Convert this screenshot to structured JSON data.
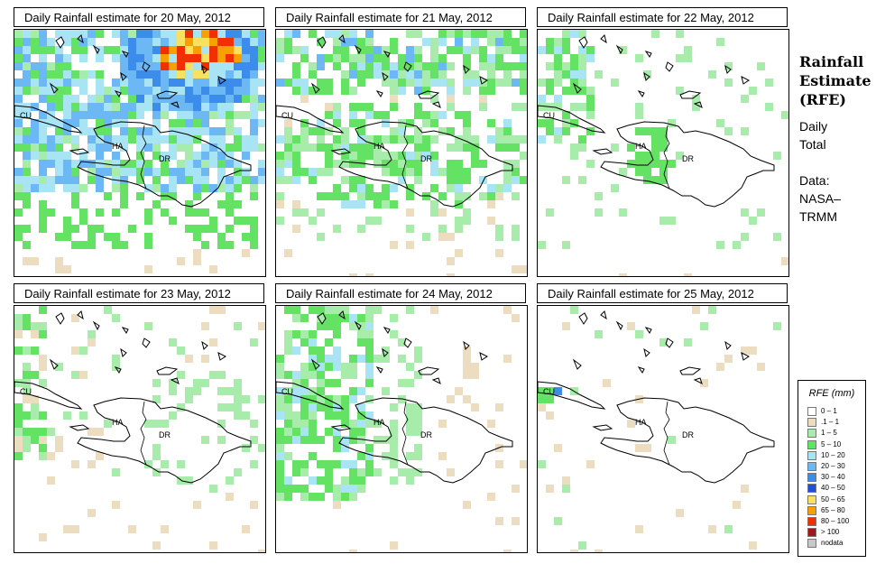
{
  "panels": [
    {
      "title": "Daily Rainfall estimate for  20 May, 2012"
    },
    {
      "title": "Daily Rainfall estimate for  21 May, 2012"
    },
    {
      "title": "Daily Rainfall estimate for  22 May, 2012"
    },
    {
      "title": "Daily Rainfall estimate for  23 May, 2012"
    },
    {
      "title": "Daily Rainfall estimate for  24 May, 2012"
    },
    {
      "title": "Daily Rainfall estimate for  25 May, 2012"
    }
  ],
  "map_labels": {
    "cuba": "CU",
    "haiti": "HA",
    "dominican_republic": "DR"
  },
  "side_info": {
    "title_line1": "Rainfall",
    "title_line2": "Estimate",
    "title_line3": "(RFE)",
    "period_line1": "Daily",
    "period_line2": "Total",
    "source_line1": "Data:",
    "source_line2": "NASA–",
    "source_line3": "TRMM"
  },
  "legend": {
    "title": "RFE (mm)",
    "items": [
      {
        "label": "0 – 1",
        "color": "#ffffff"
      },
      {
        "label": ".1 – 1",
        "color": "#ecdcc0"
      },
      {
        "label": "1 – 5",
        "color": "#a8ecac"
      },
      {
        "label": "5 – 10",
        "color": "#64e264"
      },
      {
        "label": "10 – 20",
        "color": "#a8e4f4"
      },
      {
        "label": "20 – 30",
        "color": "#6cb8f4"
      },
      {
        "label": "30 – 40",
        "color": "#3c8cec"
      },
      {
        "label": "40 – 50",
        "color": "#2050d8"
      },
      {
        "label": "50 – 65",
        "color": "#f8e060"
      },
      {
        "label": "65 – 80",
        "color": "#f8a000"
      },
      {
        "label": "80 – 100",
        "color": "#f03000"
      },
      {
        "label": "> 100",
        "color": "#a01818"
      },
      {
        "label": "nodata",
        "color": "#c8c8c8"
      }
    ]
  },
  "rainfall_coverage": {
    "by_day": [
      "heavy",
      "moderate",
      "light",
      "light",
      "light",
      "minimal"
    ]
  }
}
